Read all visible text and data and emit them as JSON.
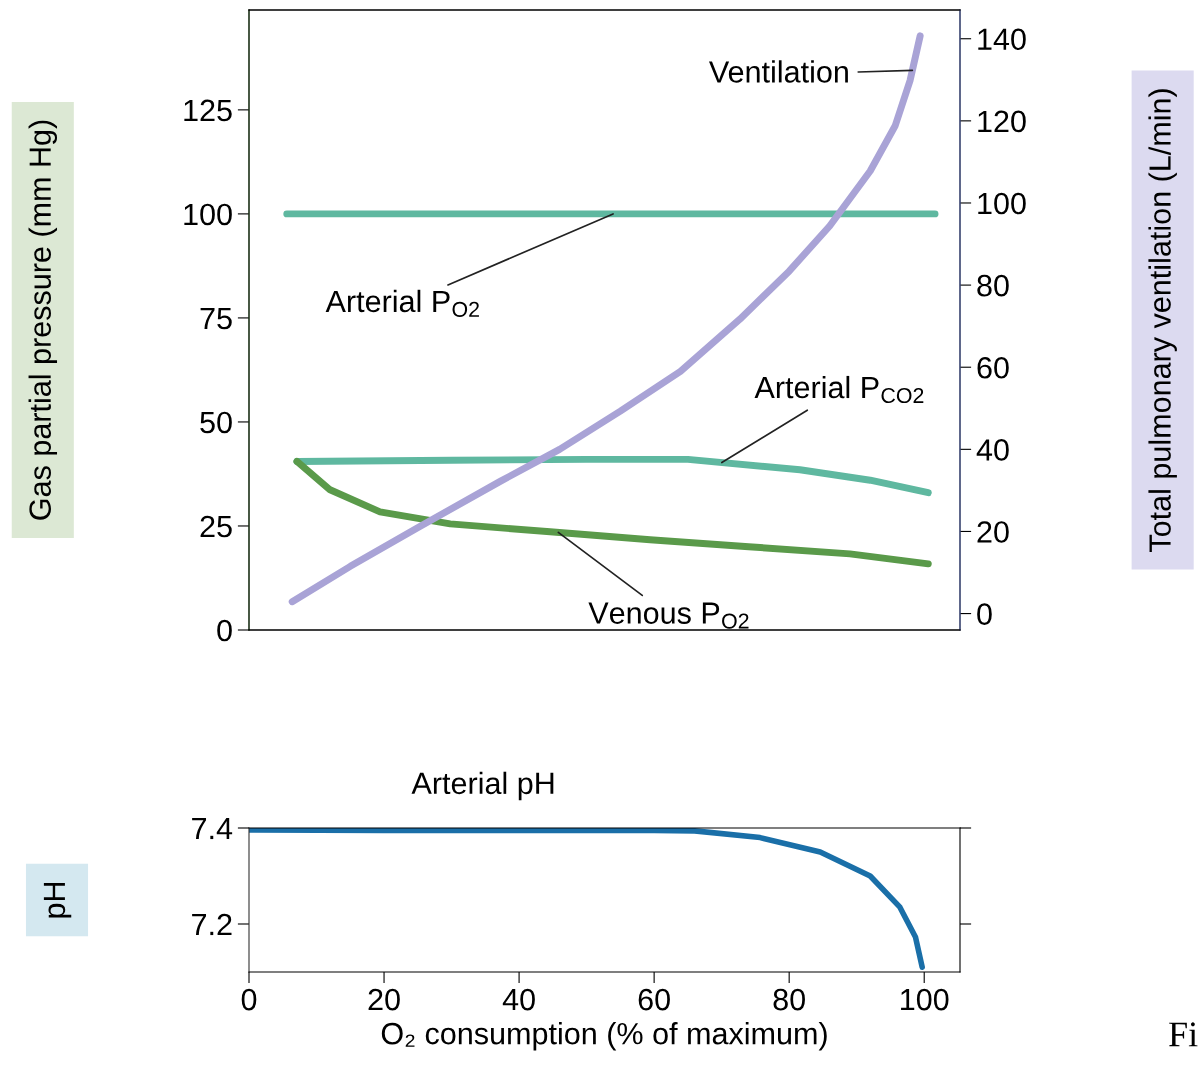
{
  "chart_data": [
    {
      "type": "line",
      "ylabel": "Gas partial pressure (mm Hg)",
      "y2label": "Total pulmonary ventilation (L/min)",
      "xlim": [
        0,
        105.3
      ],
      "ylim": [
        0,
        149
      ],
      "yticks": [
        0,
        25,
        50,
        75,
        100,
        125
      ],
      "y2lim": [
        -4,
        147
      ],
      "y2ticks": [
        0,
        20,
        40,
        60,
        80,
        100,
        120,
        140
      ],
      "tick_labels": "y",
      "grid": false,
      "legend": false,
      "marker": "none",
      "line_style": "solid",
      "series": [
        {
          "name": "Arterial P$_{O2}$",
          "color": "#5fb8a0",
          "x": [
            5.6,
            101.6
          ],
          "values": [
            100,
            100
          ]
        },
        {
          "name": "Arterial P$_{CO2}$",
          "color": "#5fb8a0",
          "x": [
            7.1,
            30,
            50,
            65,
            81.6,
            92,
            100.6
          ],
          "values": [
            40.5,
            40.8,
            41,
            41,
            38.5,
            36,
            33
          ]
        },
        {
          "name": "Venous P$_{O2}$",
          "color": "#5a9a4a",
          "x": [
            7.1,
            12,
            19.4,
            29.8,
            44.6,
            59.4,
            74,
            89,
            100.6
          ],
          "values": [
            40.5,
            33.7,
            28.4,
            25.5,
            23.6,
            21.7,
            20,
            18.3,
            15.9
          ]
        },
        {
          "name": "Ventilation",
          "color": "#a9a3d6",
          "axis": "y2",
          "x": [
            6.4,
            15,
            25.3,
            37.2,
            46,
            55,
            63.9,
            72.7,
            80,
            86,
            92,
            95.7,
            97.9,
            99.4
          ],
          "values": [
            2.9,
            11.5,
            21.2,
            32.2,
            40,
            49.3,
            59,
            71.7,
            83.4,
            94.4,
            107.8,
            118.8,
            129.8,
            140.7
          ]
        }
      ]
    },
    {
      "type": "line",
      "ylabel": "pH",
      "xlabel": "O₂ consumption (% of maximum)",
      "xlim": [
        0,
        105.3
      ],
      "xticks": [
        0,
        20,
        40,
        60,
        80,
        100
      ],
      "ylim": [
        7.1,
        7.4
      ],
      "yticks": [
        7.2,
        7.4
      ],
      "grid": false,
      "legend": false,
      "marker": "none",
      "line_style": "solid",
      "annotations": [
        "Fi"
      ],
      "series": [
        {
          "name": "Arterial pH",
          "color": "#1a6fa8",
          "x": [
            0.1,
            20,
            40,
            60,
            66,
            75.7,
            84.6,
            92,
            96.4,
            98.7,
            99.7
          ],
          "values": [
            7.396,
            7.395,
            7.395,
            7.395,
            7.394,
            7.38,
            7.35,
            7.3,
            7.235,
            7.173,
            7.11
          ]
        }
      ]
    }
  ]
}
